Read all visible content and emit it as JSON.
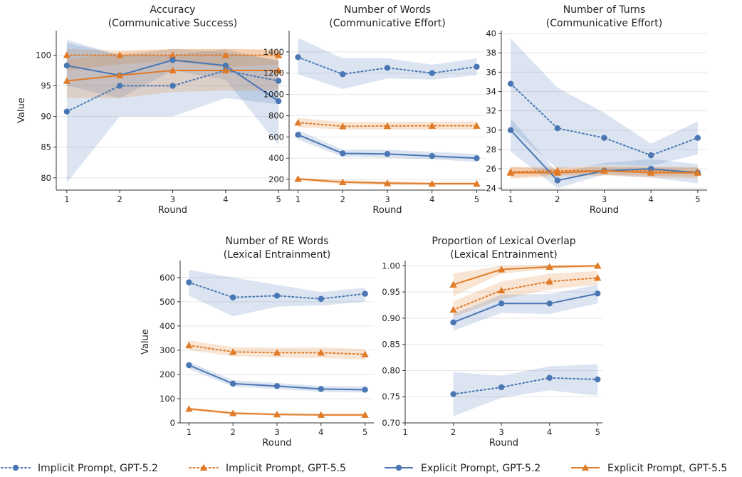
{
  "series_styles": {
    "implicit_52": {
      "label": "Implicit Prompt, GPT-5.2",
      "color": "#4a77b4",
      "dash": "dotted",
      "marker": "circle"
    },
    "implicit_55": {
      "label": "Implicit Prompt, GPT-5.5",
      "color": "#e07b28",
      "dash": "dotted",
      "marker": "triangle"
    },
    "explicit_52": {
      "label": "Explicit Prompt, GPT-5.2",
      "color": "#4a77b4",
      "dash": "solid",
      "marker": "circle"
    },
    "explicit_55": {
      "label": "Explicit Prompt, GPT-5.5",
      "color": "#e07b28",
      "dash": "solid",
      "marker": "triangle"
    }
  },
  "legend": {
    "placement": "bottom",
    "order": [
      "implicit_52",
      "implicit_55",
      "explicit_52",
      "explicit_55"
    ]
  },
  "chart_data": [
    {
      "type": "line",
      "title": "Accuracy\n(Communicative Success)",
      "xlabel": "Round",
      "ylabel": "Value",
      "x": [
        1,
        2,
        3,
        4,
        5
      ],
      "xlim": [
        0.8,
        5.2
      ],
      "xticks": [
        1,
        2,
        3,
        4,
        5
      ],
      "ylim": [
        78,
        104
      ],
      "yticks": [
        80,
        85,
        90,
        95,
        100
      ],
      "series": [
        {
          "key": "implicit_52",
          "y": [
            90.8,
            95.0,
            95.0,
            97.5,
            95.8
          ],
          "band_low": [
            79.2,
            90.0,
            90.0,
            93.0,
            92.0
          ],
          "band_high": [
            102.0,
            100.0,
            100.0,
            101.0,
            99.0
          ]
        },
        {
          "key": "implicit_55",
          "y": [
            100,
            100,
            100,
            100,
            100
          ],
          "band_low": [
            97.5,
            98.5,
            99.0,
            98.0,
            98.5
          ],
          "band_high": [
            101.0,
            100.8,
            101.0,
            101.0,
            100.8
          ]
        },
        {
          "key": "explicit_52",
          "y": [
            98.3,
            96.7,
            99.2,
            98.3,
            92.5
          ],
          "band_low": [
            95.0,
            93.0,
            97.5,
            96.0,
            85.3
          ],
          "band_high": [
            102.5,
            100.0,
            101.0,
            100.5,
            99.2
          ]
        },
        {
          "key": "explicit_55",
          "y": [
            95.8,
            96.7,
            97.5,
            97.5,
            97.5
          ],
          "band_low": [
            93.0,
            93.0,
            94.0,
            94.2,
            94.2
          ],
          "band_high": [
            99.2,
            100.5,
            101.0,
            101.0,
            101.0
          ]
        }
      ]
    },
    {
      "type": "line",
      "title": "Number of Words\n(Communicative Effort)",
      "xlabel": "Round",
      "ylabel": "",
      "x": [
        1,
        2,
        3,
        4,
        5
      ],
      "xlim": [
        0.8,
        5.2
      ],
      "xticks": [
        1,
        2,
        3,
        4,
        5
      ],
      "ylim": [
        100,
        1600
      ],
      "yticks": [
        200,
        400,
        600,
        800,
        1000,
        1200,
        1400
      ],
      "series": [
        {
          "key": "implicit_52",
          "y": [
            1350,
            1190,
            1250,
            1200,
            1260
          ],
          "band_low": [
            1190,
            1050,
            1150,
            1140,
            1180
          ],
          "band_high": [
            1530,
            1340,
            1340,
            1280,
            1340
          ]
        },
        {
          "key": "implicit_55",
          "y": [
            735,
            700,
            703,
            705,
            705
          ],
          "band_low": [
            690,
            670,
            670,
            670,
            670
          ],
          "band_high": [
            780,
            740,
            740,
            745,
            745
          ]
        },
        {
          "key": "explicit_52",
          "y": [
            620,
            445,
            440,
            420,
            400
          ],
          "band_low": [
            575,
            415,
            405,
            390,
            365
          ],
          "band_high": [
            665,
            480,
            480,
            460,
            440
          ]
        },
        {
          "key": "explicit_55",
          "y": [
            205,
            175,
            165,
            160,
            160
          ],
          "band_low": [
            190,
            155,
            148,
            145,
            145
          ],
          "band_high": [
            220,
            195,
            185,
            178,
            178
          ]
        }
      ]
    },
    {
      "type": "line",
      "title": "Number of Turns\n(Communicative Effort)",
      "xlabel": "Round",
      "ylabel": "",
      "x": [
        1,
        2,
        3,
        4,
        5
      ],
      "xlim": [
        0.8,
        5.2
      ],
      "xticks": [
        1,
        2,
        3,
        4,
        5
      ],
      "ylim": [
        23.8,
        40.3
      ],
      "yticks": [
        24,
        26,
        28,
        30,
        32,
        34,
        36,
        38,
        40
      ],
      "series": [
        {
          "key": "implicit_52",
          "y": [
            34.8,
            30.2,
            29.2,
            27.4,
            29.2
          ],
          "band_low": [
            30.2,
            26.0,
            26.4,
            26.3,
            27.5
          ],
          "band_high": [
            39.5,
            34.4,
            31.8,
            28.6,
            30.9
          ]
        },
        {
          "key": "implicit_55",
          "y": [
            25.7,
            25.8,
            25.8,
            25.8,
            25.7
          ],
          "band_low": [
            25.1,
            25.4,
            25.4,
            25.3,
            25.2
          ],
          "band_high": [
            26.2,
            26.2,
            26.2,
            26.2,
            26.2
          ]
        },
        {
          "key": "explicit_52",
          "y": [
            30.0,
            24.8,
            25.8,
            26.0,
            25.6
          ],
          "band_low": [
            27.8,
            24.0,
            25.4,
            25.1,
            24.5
          ],
          "band_high": [
            31.2,
            25.6,
            26.6,
            27.0,
            26.5
          ]
        },
        {
          "key": "explicit_55",
          "y": [
            25.6,
            25.6,
            25.8,
            25.6,
            25.6
          ],
          "band_low": [
            25.0,
            25.2,
            25.3,
            25.1,
            25.0
          ],
          "band_high": [
            26.2,
            26.0,
            26.3,
            26.2,
            26.1
          ]
        }
      ]
    },
    {
      "type": "line",
      "title": "Number of RE Words\n(Lexical Entrainment)",
      "xlabel": "Round",
      "ylabel": "Value",
      "x": [
        1,
        2,
        3,
        4,
        5
      ],
      "xlim": [
        0.8,
        5.2
      ],
      "xticks": [
        1,
        2,
        3,
        4,
        5
      ],
      "ylim": [
        0,
        670
      ],
      "yticks": [
        0,
        100,
        200,
        300,
        400,
        500,
        600
      ],
      "series": [
        {
          "key": "implicit_52",
          "y": [
            580,
            518,
            525,
            512,
            533
          ],
          "band_low": [
            525,
            440,
            480,
            485,
            500
          ],
          "band_high": [
            632,
            600,
            570,
            540,
            558
          ]
        },
        {
          "key": "implicit_55",
          "y": [
            320,
            293,
            290,
            290,
            283
          ],
          "band_low": [
            300,
            275,
            270,
            268,
            262
          ],
          "band_high": [
            340,
            313,
            310,
            312,
            305
          ]
        },
        {
          "key": "explicit_52",
          "y": [
            238,
            162,
            152,
            140,
            137
          ],
          "band_low": [
            222,
            150,
            140,
            128,
            125
          ],
          "band_high": [
            252,
            176,
            165,
            152,
            150
          ]
        },
        {
          "key": "explicit_55",
          "y": [
            58,
            40,
            35,
            33,
            33
          ],
          "band_low": [
            52,
            35,
            30,
            28,
            28
          ],
          "band_high": [
            64,
            46,
            40,
            38,
            38
          ]
        }
      ]
    },
    {
      "type": "line",
      "title": "Proportion of Lexical Overlap\n(Lexical Entrainment)",
      "xlabel": "Round",
      "ylabel": "",
      "x": [
        2,
        3,
        4,
        5
      ],
      "xlim": [
        1,
        5.1
      ],
      "xticks": [
        1,
        2,
        3,
        4,
        5
      ],
      "ylim": [
        0.7,
        1.01
      ],
      "yticks": [
        0.7,
        0.75,
        0.8,
        0.85,
        0.9,
        0.95,
        1.0
      ],
      "ytick_decimals": 2,
      "series": [
        {
          "key": "implicit_52",
          "y": [
            0.755,
            0.768,
            0.786,
            0.783
          ],
          "band_low": [
            0.713,
            0.748,
            0.762,
            0.752
          ],
          "band_high": [
            0.797,
            0.79,
            0.808,
            0.812
          ]
        },
        {
          "key": "implicit_55",
          "y": [
            0.916,
            0.953,
            0.97,
            0.977
          ],
          "band_low": [
            0.902,
            0.936,
            0.955,
            0.964
          ],
          "band_high": [
            0.932,
            0.97,
            0.985,
            0.99
          ]
        },
        {
          "key": "explicit_52",
          "y": [
            0.892,
            0.928,
            0.928,
            0.947
          ],
          "band_low": [
            0.876,
            0.91,
            0.908,
            0.928
          ],
          "band_high": [
            0.908,
            0.945,
            0.946,
            0.964
          ]
        },
        {
          "key": "explicit_55",
          "y": [
            0.964,
            0.993,
            0.998,
            1.0
          ],
          "band_low": [
            0.942,
            0.985,
            0.994,
            0.998
          ],
          "band_high": [
            0.985,
            1.0,
            1.002,
            1.002
          ]
        }
      ]
    }
  ]
}
